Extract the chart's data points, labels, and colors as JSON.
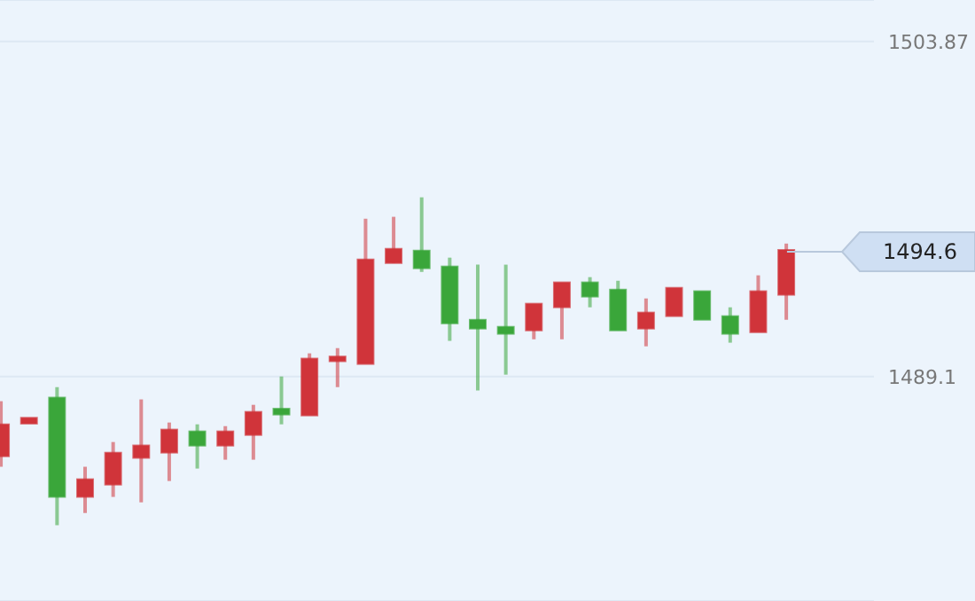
{
  "chart_data": {
    "type": "candlestick",
    "categories": [
      null,
      null,
      null,
      null,
      null,
      null,
      null,
      null,
      null,
      null,
      null,
      null,
      null,
      null,
      null,
      null,
      null,
      null,
      null,
      null,
      null,
      null,
      null,
      null,
      null,
      null,
      null,
      null,
      null
    ],
    "ohlc": [
      [
        1485.66,
        1488.01,
        1485.12,
        1486.91
      ],
      [
        1487.1,
        1487.2,
        1487.1,
        1487.2
      ],
      [
        1488.09,
        1488.63,
        1482.54,
        1483.87
      ],
      [
        1483.87,
        1485.12,
        1483.08,
        1484.49
      ],
      [
        1484.41,
        1486.21,
        1483.79,
        1485.66
      ],
      [
        1485.59,
        1488.09,
        1483.55,
        1485.98
      ],
      [
        1485.82,
        1487.07,
        1484.49,
        1486.68
      ],
      [
        1486.6,
        1486.99,
        1485.04,
        1486.13
      ],
      [
        1486.13,
        1486.91,
        1485.43,
        1486.6
      ],
      [
        1486.6,
        1487.85,
        1485.43,
        1487.46
      ],
      [
        1487.6,
        1489.1,
        1486.99,
        1487.5
      ],
      [
        1487.46,
        1490.12,
        1487.46,
        1489.81
      ],
      [
        1489.85,
        1490.35,
        1488.63,
        1489.9
      ],
      [
        1489.73,
        1496.06,
        1489.73,
        1494.18
      ],
      [
        1494.18,
        1496.14,
        1494.1,
        1494.65
      ],
      [
        1494.57,
        1497.0,
        1493.71,
        1493.95
      ],
      [
        1493.87,
        1494.34,
        1490.67,
        1491.52
      ],
      [
        1491.52,
        1494.03,
        1488.48,
        1491.29
      ],
      [
        1491.21,
        1494.03,
        1489.18,
        1491.06
      ],
      [
        1491.21,
        1492.23,
        1490.74,
        1492.23
      ],
      [
        1492.23,
        1493.17,
        1490.74,
        1493.17
      ],
      [
        1493.17,
        1493.48,
        1492.15,
        1492.7
      ],
      [
        1492.85,
        1493.32,
        1491.21,
        1491.21
      ],
      [
        1491.29,
        1492.54,
        1490.43,
        1491.84
      ],
      [
        1491.84,
        1492.93,
        1491.84,
        1492.93
      ],
      [
        1492.78,
        1492.78,
        1491.68,
        1491.68
      ],
      [
        1491.68,
        1492.15,
        1490.59,
        1491.06
      ],
      [
        1491.13,
        1493.56,
        1491.13,
        1492.78
      ],
      [
        1492.78,
        1494.96,
        1491.6,
        1494.6
      ]
    ],
    "colors": [
      "#d0343a",
      "#d0343a",
      "#3aa63a",
      "#d0343a",
      "#d0343a",
      "#d0343a",
      "#d0343a",
      "#3aa63a",
      "#d0343a",
      "#d0343a",
      "#3aa63a",
      "#d0343a",
      "#d0343a",
      "#d0343a",
      "#d0343a",
      "#3aa63a",
      "#3aa63a",
      "#3aa63a",
      "#3aa63a",
      "#d0343a",
      "#d0343a",
      "#3aa63a",
      "#3aa63a",
      "#d0343a",
      "#d0343a",
      "#3aa63a",
      "#3aa63a",
      "#d0343a",
      "#d0343a"
    ],
    "ylim": [
      1479.2,
      1505.7
    ],
    "yticks": [
      1503.87,
      1489.1
    ],
    "grid": "y",
    "tick_labels": "y",
    "ref_lines": [
      {
        "axis": "y",
        "value": 1494.6,
        "label": "1494.6",
        "color": "#b8c8dc"
      }
    ]
  }
}
